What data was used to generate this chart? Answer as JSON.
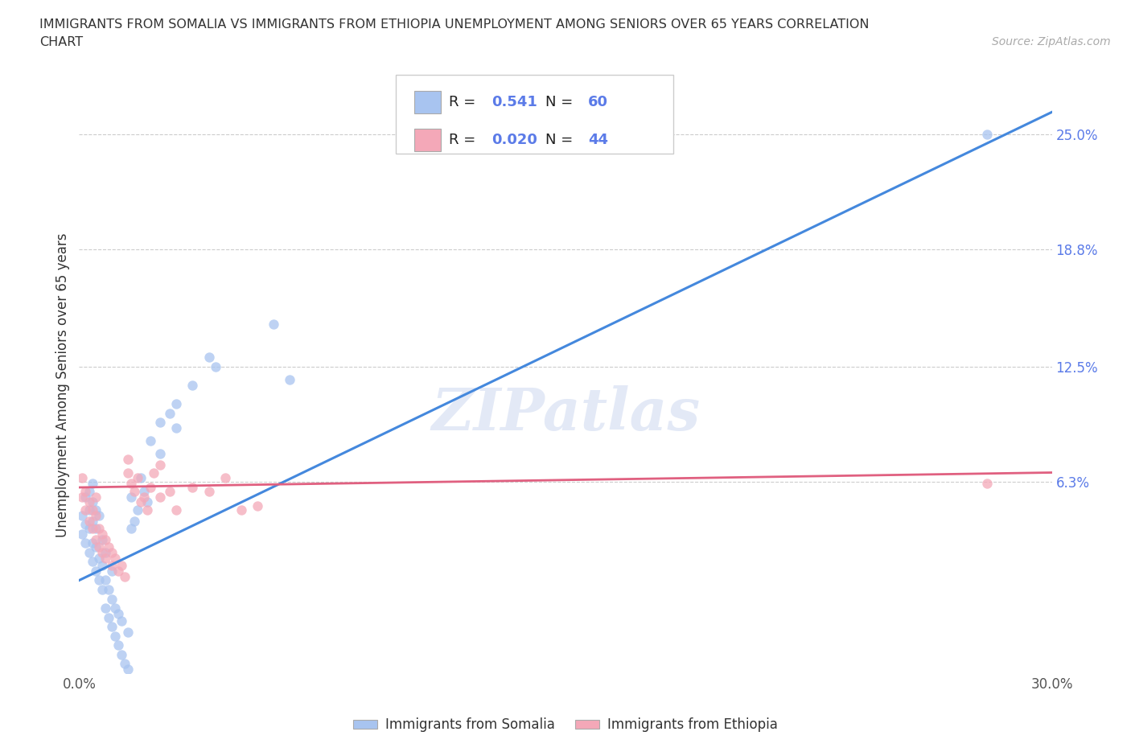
{
  "title": "IMMIGRANTS FROM SOMALIA VS IMMIGRANTS FROM ETHIOPIA UNEMPLOYMENT AMONG SENIORS OVER 65 YEARS CORRELATION\nCHART",
  "source_text": "Source: ZipAtlas.com",
  "ylabel": "Unemployment Among Seniors over 65 years",
  "xlim": [
    0.0,
    0.3
  ],
  "ylim": [
    -0.04,
    0.27
  ],
  "grid_color": "#cccccc",
  "background_color": "#ffffff",
  "somalia_color": "#a8c4f0",
  "ethiopia_color": "#f4a8b8",
  "somalia_line_color": "#4488dd",
  "ethiopia_line_color": "#e06080",
  "somalia_R": 0.541,
  "somalia_N": 60,
  "ethiopia_R": 0.02,
  "ethiopia_N": 44,
  "watermark": "ZIPatlas",
  "tick_color": "#5b7be8",
  "legend_label_somalia": "Immigrants from Somalia",
  "legend_label_ethiopia": "Immigrants from Ethiopia",
  "somalia_x": [
    0.001,
    0.001,
    0.002,
    0.002,
    0.002,
    0.003,
    0.003,
    0.003,
    0.003,
    0.004,
    0.004,
    0.004,
    0.004,
    0.004,
    0.005,
    0.005,
    0.005,
    0.005,
    0.006,
    0.006,
    0.006,
    0.007,
    0.007,
    0.007,
    0.008,
    0.008,
    0.008,
    0.009,
    0.009,
    0.01,
    0.01,
    0.01,
    0.011,
    0.011,
    0.012,
    0.012,
    0.013,
    0.013,
    0.014,
    0.015,
    0.015,
    0.016,
    0.016,
    0.017,
    0.018,
    0.019,
    0.02,
    0.021,
    0.022,
    0.025,
    0.025,
    0.028,
    0.03,
    0.03,
    0.035,
    0.04,
    0.042,
    0.06,
    0.065,
    0.28
  ],
  "somalia_y": [
    0.035,
    0.045,
    0.03,
    0.04,
    0.055,
    0.025,
    0.038,
    0.048,
    0.058,
    0.02,
    0.03,
    0.042,
    0.052,
    0.062,
    0.015,
    0.028,
    0.038,
    0.048,
    0.01,
    0.022,
    0.045,
    0.005,
    0.018,
    0.032,
    -0.005,
    0.01,
    0.025,
    -0.01,
    0.005,
    -0.015,
    0.0,
    0.015,
    -0.02,
    -0.005,
    -0.025,
    -0.008,
    -0.03,
    -0.012,
    -0.035,
    -0.038,
    -0.018,
    0.038,
    0.055,
    0.042,
    0.048,
    0.065,
    0.058,
    0.052,
    0.085,
    0.078,
    0.095,
    0.1,
    0.092,
    0.105,
    0.115,
    0.13,
    0.125,
    0.148,
    0.118,
    0.25
  ],
  "ethiopia_x": [
    0.001,
    0.001,
    0.002,
    0.002,
    0.003,
    0.003,
    0.004,
    0.004,
    0.005,
    0.005,
    0.005,
    0.006,
    0.006,
    0.007,
    0.007,
    0.008,
    0.008,
    0.009,
    0.01,
    0.01,
    0.011,
    0.012,
    0.013,
    0.014,
    0.015,
    0.015,
    0.016,
    0.017,
    0.018,
    0.019,
    0.02,
    0.021,
    0.022,
    0.023,
    0.025,
    0.025,
    0.028,
    0.03,
    0.035,
    0.04,
    0.045,
    0.05,
    0.055,
    0.28
  ],
  "ethiopia_y": [
    0.055,
    0.065,
    0.048,
    0.058,
    0.042,
    0.052,
    0.038,
    0.048,
    0.032,
    0.045,
    0.055,
    0.028,
    0.038,
    0.025,
    0.035,
    0.022,
    0.032,
    0.028,
    0.018,
    0.025,
    0.022,
    0.015,
    0.018,
    0.012,
    0.068,
    0.075,
    0.062,
    0.058,
    0.065,
    0.052,
    0.055,
    0.048,
    0.06,
    0.068,
    0.055,
    0.072,
    0.058,
    0.048,
    0.06,
    0.058,
    0.065,
    0.048,
    0.05,
    0.062
  ],
  "ytick_positions": [
    0.063,
    0.125,
    0.188,
    0.25
  ],
  "ytick_labels": [
    "6.3%",
    "12.5%",
    "18.8%",
    "25.0%"
  ]
}
